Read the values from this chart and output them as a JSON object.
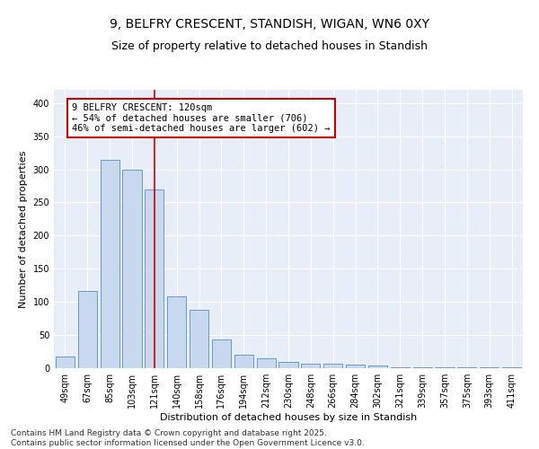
{
  "title": "9, BELFRY CRESCENT, STANDISH, WIGAN, WN6 0XY",
  "subtitle": "Size of property relative to detached houses in Standish",
  "xlabel": "Distribution of detached houses by size in Standish",
  "ylabel": "Number of detached properties",
  "categories": [
    "49sqm",
    "67sqm",
    "85sqm",
    "103sqm",
    "121sqm",
    "140sqm",
    "158sqm",
    "176sqm",
    "194sqm",
    "212sqm",
    "230sqm",
    "248sqm",
    "266sqm",
    "284sqm",
    "302sqm",
    "321sqm",
    "339sqm",
    "357sqm",
    "375sqm",
    "393sqm",
    "411sqm"
  ],
  "values": [
    18,
    117,
    315,
    300,
    270,
    108,
    88,
    43,
    21,
    15,
    9,
    7,
    7,
    6,
    4,
    2,
    1,
    1,
    2,
    1,
    2
  ],
  "bar_color": "#c8d8ee",
  "bar_edge_color": "#6699cc",
  "vline_x": 4,
  "vline_color": "#cc0000",
  "annotation_text": "9 BELFRY CRESCENT: 120sqm\n← 54% of detached houses are smaller (706)\n46% of semi-detached houses are larger (602) →",
  "annotation_box_color": "#ffffff",
  "annotation_box_edge": "#cc0000",
  "ylim": [
    0,
    420
  ],
  "yticks": [
    0,
    50,
    100,
    150,
    200,
    250,
    300,
    350,
    400
  ],
  "background_color": "#e8eef8",
  "footer_text": "Contains HM Land Registry data © Crown copyright and database right 2025.\nContains public sector information licensed under the Open Government Licence v3.0.",
  "title_fontsize": 10,
  "subtitle_fontsize": 9,
  "axis_label_fontsize": 8,
  "tick_fontsize": 7,
  "annotation_fontsize": 7.5,
  "footer_fontsize": 6.5
}
